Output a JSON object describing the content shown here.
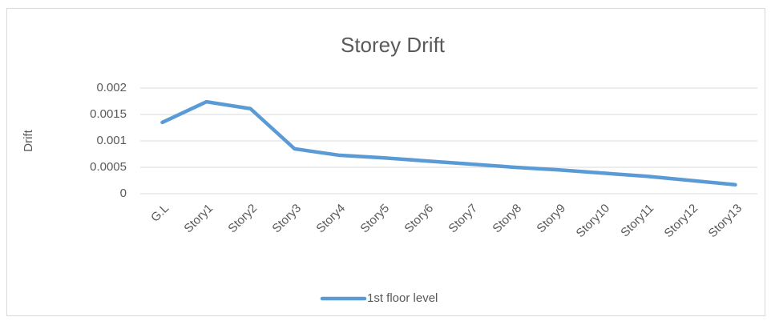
{
  "chart_data": {
    "type": "line",
    "title": "Storey Drift",
    "y_label": "Drift",
    "categories": [
      "G.L",
      "Story1",
      "Story2",
      "Story3",
      "Story4",
      "Story5",
      "Story6",
      "Story7",
      "Story8",
      "Story9",
      "Story10",
      "Story11",
      "Story12",
      "Story13"
    ],
    "series": [
      {
        "name": "1st floor level",
        "color": "#5b9bd5",
        "values": [
          0.00135,
          0.00174,
          0.00161,
          0.00085,
          0.00073,
          0.00068,
          0.00062,
          0.00056,
          0.0005,
          0.00045,
          0.00039,
          0.00033,
          0.00025,
          0.00017
        ]
      }
    ],
    "ylim": [
      0,
      0.002
    ],
    "yticks": [
      0,
      0.0005,
      0.001,
      0.0015,
      0.002
    ],
    "grid": true,
    "legend": "bottom"
  }
}
